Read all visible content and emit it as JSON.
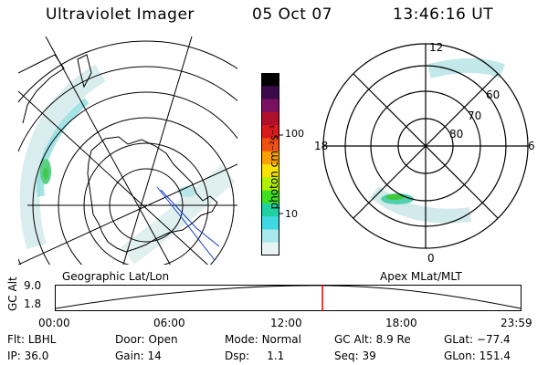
{
  "header": {
    "title": "Ultraviolet Imager",
    "date": "05 Oct 07",
    "time": "13:46:16 UT"
  },
  "left_panel": {
    "label": "Geographic Lat/Lon"
  },
  "right_panel": {
    "label": "Apex MLat/MLT",
    "mlt_labels": {
      "top": "12",
      "left": "18",
      "right": "6",
      "bottom": "0"
    },
    "lat_labels": [
      "60",
      "70",
      "80"
    ]
  },
  "colorbar": {
    "unit_label": "photon cm⁻²s⁻¹",
    "ticks": [
      "100",
      "10"
    ],
    "colors": [
      "#000000",
      "#3a0a4a",
      "#7a1060",
      "#b0102a",
      "#d81a1a",
      "#f05010",
      "#f8a000",
      "#f8e000",
      "#b0f000",
      "#40e020",
      "#20d0a0",
      "#40d8e0",
      "#a8e8ec",
      "#e8f4f4"
    ]
  },
  "altitude_plot": {
    "ylabel": "GC Alt",
    "yticks": [
      "9.0",
      "1.8"
    ],
    "xticks": [
      "00:00",
      "06:00",
      "12:00",
      "18:00",
      "23:59"
    ],
    "marker_hours": 13.77
  },
  "footer": {
    "row1": [
      {
        "label": "Flt:",
        "value": "LBHL"
      },
      {
        "label": "Door:",
        "value": "Open"
      },
      {
        "label": "Mode:",
        "value": "Normal"
      },
      {
        "label": "GC Alt:",
        "value": "8.9 Re"
      },
      {
        "label": "GLat:",
        "value": "−77.4"
      }
    ],
    "row2": [
      {
        "label": "IP:",
        "value": "36.0"
      },
      {
        "label": "Gain:",
        "value": "14"
      },
      {
        "label": "Dsp:",
        "value": "1.1"
      },
      {
        "label": "Seq:",
        "value": "39"
      },
      {
        "label": "GLon:",
        "value": "151.4"
      }
    ]
  }
}
